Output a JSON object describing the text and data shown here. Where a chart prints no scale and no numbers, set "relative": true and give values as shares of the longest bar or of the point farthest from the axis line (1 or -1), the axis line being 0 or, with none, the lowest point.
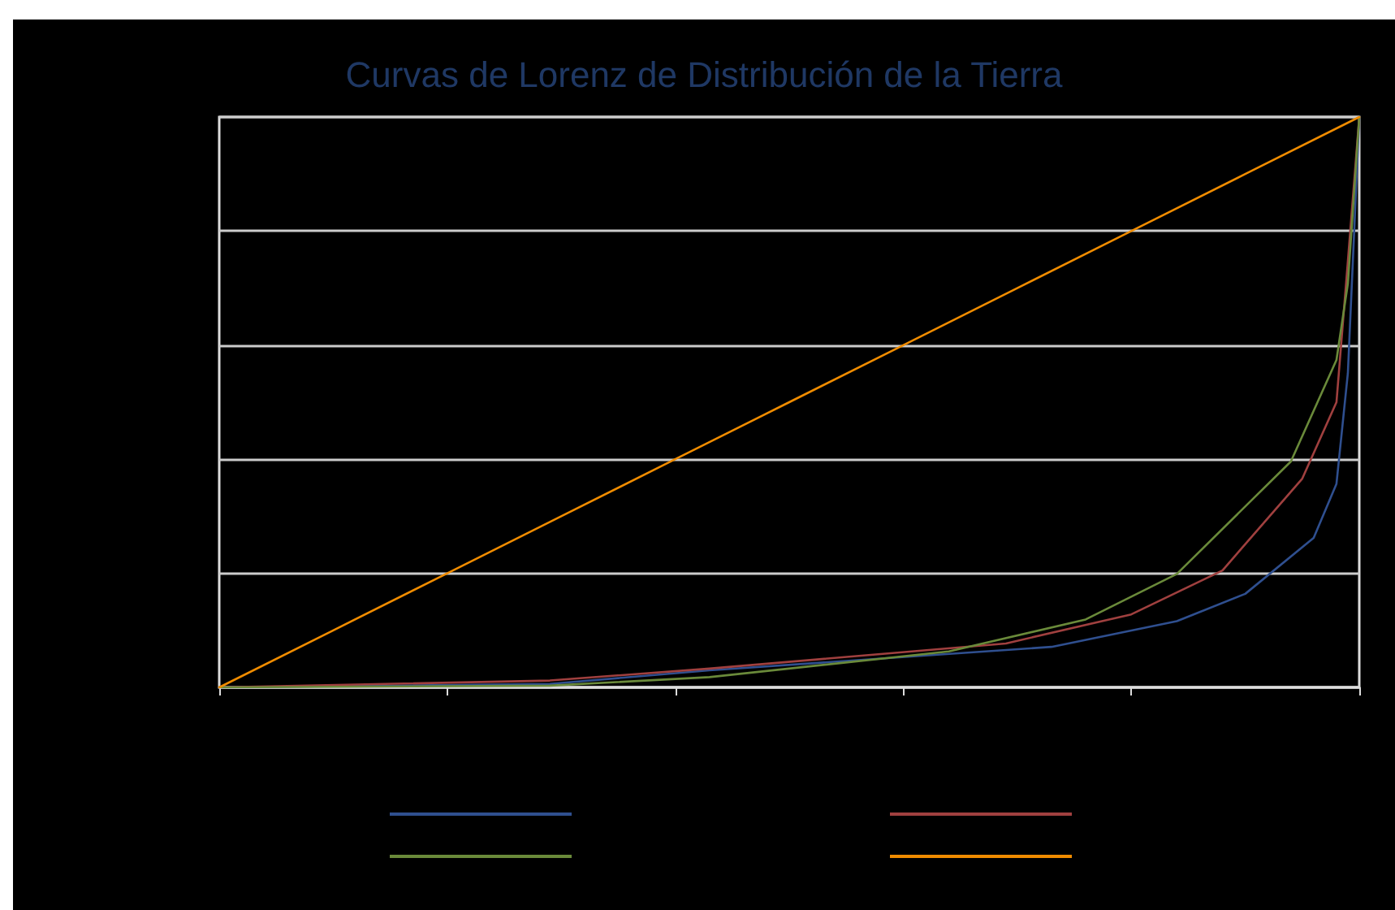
{
  "chart_data": {
    "type": "line",
    "title": "Curvas de Lorenz de Distribución de la Tierra",
    "relative": true,
    "grid": "y",
    "marker": "none",
    "line_style": "solid",
    "categories": [
      null,
      null,
      null,
      null,
      null,
      null,
      null,
      null,
      null,
      null,
      null,
      null,
      null,
      null,
      null,
      null,
      null,
      null,
      null,
      null,
      null,
      null,
      null,
      null,
      null,
      null,
      null,
      null,
      null,
      null,
      null,
      null,
      null,
      null,
      null,
      null,
      null,
      null,
      null,
      null,
      null,
      null,
      null,
      null,
      null,
      null,
      null,
      null,
      null,
      null,
      null,
      null,
      null,
      null,
      null,
      null,
      null,
      null,
      null,
      null,
      null,
      null,
      null,
      null,
      null,
      null,
      null,
      null,
      null,
      null,
      null,
      null,
      null,
      null,
      null,
      null,
      null,
      null,
      null,
      null,
      null,
      null,
      null,
      null,
      null,
      null,
      null,
      null,
      null,
      null,
      null,
      null,
      null,
      null,
      null,
      null,
      null,
      null,
      null,
      null,
      null
    ],
    "series": [
      {
        "color": "#2f4f8f",
        "values": [
          0,
          null,
          null,
          null,
          null,
          null,
          null,
          null,
          null,
          null,
          null,
          null,
          null,
          null,
          null,
          null,
          null,
          null,
          null,
          null,
          null,
          null,
          null,
          null,
          null,
          null,
          null,
          null,
          null,
          0.006,
          null,
          null,
          null,
          null,
          null,
          null,
          null,
          null,
          null,
          null,
          null,
          null,
          null,
          0.03,
          null,
          null,
          null,
          null,
          null,
          null,
          null,
          null,
          null,
          null,
          null,
          null,
          null,
          null,
          null,
          null,
          null,
          null,
          null,
          null,
          null,
          null,
          null,
          null,
          null,
          null,
          null,
          null,
          null,
          0.071,
          null,
          null,
          null,
          null,
          null,
          null,
          null,
          null,
          null,
          null,
          0.116,
          null,
          null,
          null,
          null,
          null,
          0.164,
          null,
          null,
          null,
          null,
          null,
          0.262,
          null,
          0.357,
          0.551,
          1
        ]
      },
      {
        "color": "#a0403f",
        "values": [
          0,
          null,
          null,
          null,
          null,
          null,
          null,
          null,
          null,
          null,
          null,
          null,
          null,
          null,
          null,
          null,
          null,
          null,
          null,
          null,
          null,
          null,
          null,
          null,
          null,
          null,
          null,
          null,
          null,
          0.012,
          null,
          null,
          null,
          null,
          null,
          null,
          null,
          null,
          null,
          null,
          null,
          null,
          null,
          0.033,
          null,
          null,
          null,
          null,
          null,
          null,
          null,
          null,
          null,
          null,
          null,
          null,
          null,
          null,
          null,
          null,
          null,
          null,
          null,
          null,
          null,
          null,
          null,
          null,
          null,
          0.077,
          null,
          null,
          null,
          null,
          null,
          null,
          null,
          null,
          null,
          null,
          0.128,
          null,
          null,
          null,
          null,
          null,
          null,
          null,
          0.205,
          null,
          null,
          null,
          null,
          null,
          null,
          0.366,
          null,
          null,
          0.5,
          0.747,
          1
        ]
      },
      {
        "color": "#6a8a3a",
        "values": [
          0,
          null,
          null,
          null,
          null,
          null,
          null,
          null,
          null,
          null,
          null,
          null,
          null,
          null,
          null,
          null,
          null,
          null,
          null,
          null,
          null,
          null,
          null,
          null,
          null,
          null,
          null,
          null,
          null,
          0.003,
          null,
          null,
          null,
          null,
          null,
          null,
          null,
          null,
          null,
          null,
          null,
          null,
          null,
          0.018,
          null,
          null,
          null,
          null,
          null,
          null,
          null,
          null,
          null,
          null,
          null,
          null,
          null,
          null,
          null,
          null,
          null,
          null,
          null,
          null,
          0.063,
          null,
          null,
          null,
          null,
          null,
          null,
          null,
          null,
          null,
          null,
          null,
          0.119,
          null,
          null,
          null,
          null,
          null,
          null,
          null,
          0.199,
          null,
          null,
          null,
          null,
          null,
          null,
          null,
          null,
          null,
          0.396,
          null,
          null,
          null,
          0.574,
          0.708,
          1
        ]
      },
      {
        "color": "#f08c00",
        "values": [
          0,
          null,
          null,
          null,
          null,
          null,
          null,
          null,
          null,
          null,
          0.1,
          null,
          null,
          null,
          null,
          null,
          null,
          null,
          null,
          null,
          0.2,
          null,
          null,
          null,
          null,
          null,
          null,
          null,
          null,
          null,
          0.3,
          null,
          null,
          null,
          null,
          null,
          null,
          null,
          null,
          null,
          0.4,
          null,
          null,
          null,
          null,
          null,
          null,
          null,
          null,
          null,
          0.5,
          null,
          null,
          null,
          null,
          null,
          null,
          null,
          null,
          null,
          0.6,
          null,
          null,
          null,
          null,
          null,
          null,
          null,
          null,
          null,
          0.7,
          null,
          null,
          null,
          null,
          null,
          null,
          null,
          null,
          null,
          0.8,
          null,
          null,
          null,
          null,
          null,
          null,
          null,
          null,
          null,
          0.9,
          null,
          null,
          null,
          null,
          null,
          null,
          null,
          null,
          null,
          1
        ]
      }
    ]
  }
}
